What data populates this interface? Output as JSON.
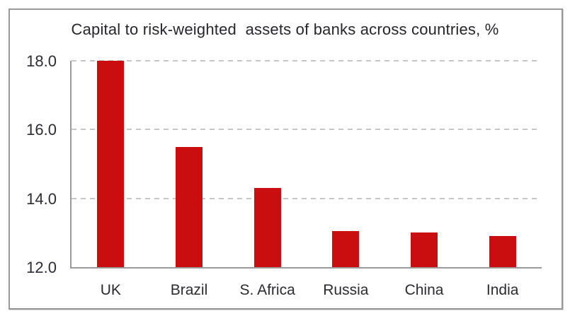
{
  "chart_data": {
    "type": "bar",
    "title": "Capital to risk-weighted  assets of banks across countries, %",
    "categories": [
      "UK",
      "Brazil",
      "S. Africa",
      "Russia",
      "China",
      "India"
    ],
    "values": [
      18.0,
      15.5,
      14.3,
      13.05,
      13.0,
      12.9
    ],
    "ylim": [
      12.0,
      18.0
    ],
    "yticks": [
      12.0,
      14.0,
      16.0,
      18.0
    ],
    "ytick_labels": [
      "12.0",
      "14.0",
      "16.0",
      "18.0"
    ],
    "xlabel": "",
    "ylabel": "",
    "legend": "none",
    "grid": "horizontal-dashed",
    "bar_color": "#ca0e0f",
    "grid_color": "#c6c6c6",
    "axis_color": "#9b9b9b",
    "text_color": "#2b2933",
    "frame_color": "#97999b"
  }
}
